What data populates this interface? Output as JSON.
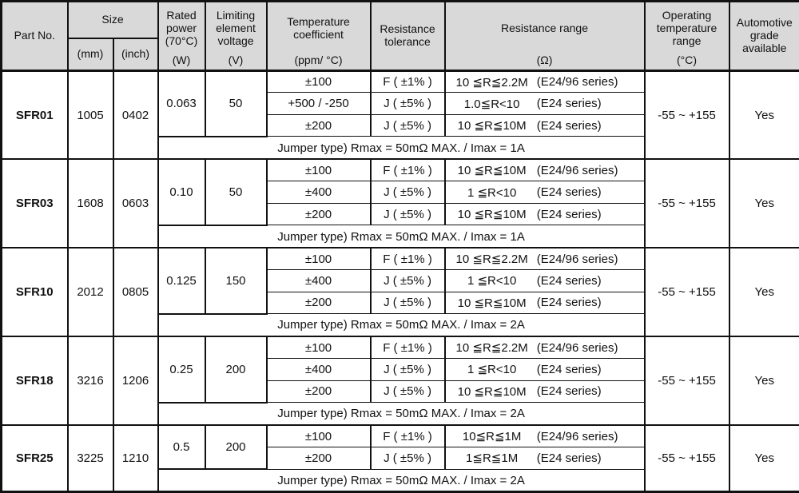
{
  "header": {
    "part_no": "Part No.",
    "size": "Size",
    "mm": "(mm)",
    "inch": "(inch)",
    "rated_power": "Rated power (70°C)",
    "rated_power_unit": "(W)",
    "limiting_voltage": "Limiting element voltage",
    "limiting_voltage_unit": "(V)",
    "temp_coeff": "Temperature coefficient",
    "temp_coeff_unit": "(ppm/ °C)",
    "tolerance": "Resistance tolerance",
    "resistance_range": "Resistance range",
    "resistance_range_unit": "(Ω)",
    "op_temp": "Operating temperature range",
    "op_temp_unit": "(°C)",
    "automotive": "Automotive grade available"
  },
  "groups": [
    {
      "part": "SFR01",
      "mm": "1005",
      "inch": "0402",
      "power": "0.063",
      "voltage": "50",
      "rows": [
        {
          "tc": "±100",
          "tol": "F ( ±1% )",
          "range": "10 ≦R≦2.2M",
          "series": "(E24/96 series)"
        },
        {
          "tc": "+500 / -250",
          "tol": "J ( ±5% )",
          "range": "1.0≦R<10",
          "series": "(E24 series)"
        },
        {
          "tc": "±200",
          "tol": "J ( ±5% )",
          "range": "10 ≦R≦10M",
          "series": "(E24 series)"
        }
      ],
      "jumper": "Jumper type) Rmax = 50mΩ MAX. / Imax = 1A",
      "op_temp": "-55 ~ +155",
      "automotive": "Yes"
    },
    {
      "part": "SFR03",
      "mm": "1608",
      "inch": "0603",
      "power": "0.10",
      "voltage": "50",
      "rows": [
        {
          "tc": "±100",
          "tol": "F ( ±1% )",
          "range": "10 ≦R≦10M",
          "series": "(E24/96 series)"
        },
        {
          "tc": "±400",
          "tol": "J ( ±5% )",
          "range": "1 ≦R<10",
          "series": "(E24 series)"
        },
        {
          "tc": "±200",
          "tol": "J ( ±5% )",
          "range": "10 ≦R≦10M",
          "series": "(E24 series)"
        }
      ],
      "jumper": "Jumper type) Rmax = 50mΩ MAX. / Imax = 1A",
      "op_temp": "-55 ~ +155",
      "automotive": "Yes"
    },
    {
      "part": "SFR10",
      "mm": "2012",
      "inch": "0805",
      "power": "0.125",
      "voltage": "150",
      "rows": [
        {
          "tc": "±100",
          "tol": "F ( ±1% )",
          "range": "10 ≦R≦2.2M",
          "series": "(E24/96 series)"
        },
        {
          "tc": "±400",
          "tol": "J ( ±5% )",
          "range": "1 ≦R<10",
          "series": "(E24 series)"
        },
        {
          "tc": "±200",
          "tol": "J ( ±5% )",
          "range": "10 ≦R≦10M",
          "series": "(E24 series)"
        }
      ],
      "jumper": "Jumper type) Rmax = 50mΩ MAX. / Imax = 2A",
      "op_temp": "-55 ~ +155",
      "automotive": "Yes"
    },
    {
      "part": "SFR18",
      "mm": "3216",
      "inch": "1206",
      "power": "0.25",
      "voltage": "200",
      "rows": [
        {
          "tc": "±100",
          "tol": "F ( ±1% )",
          "range": "10 ≦R≦2.2M",
          "series": "(E24/96 series)"
        },
        {
          "tc": "±400",
          "tol": "J ( ±5% )",
          "range": "1 ≦R<10",
          "series": "(E24 series)"
        },
        {
          "tc": "±200",
          "tol": "J ( ±5% )",
          "range": "10 ≦R≦10M",
          "series": "(E24 series)"
        }
      ],
      "jumper": "Jumper type) Rmax = 50mΩ MAX. / Imax = 2A",
      "op_temp": "-55 ~ +155",
      "automotive": "Yes"
    },
    {
      "part": "SFR25",
      "mm": "3225",
      "inch": "1210",
      "power": "0.5",
      "voltage": "200",
      "rows": [
        {
          "tc": "±100",
          "tol": "F ( ±1% )",
          "range": "10≦R≦1M",
          "series": "(E24/96 series)"
        },
        {
          "tc": "±200",
          "tol": "J ( ±5% )",
          "range": "1≦R≦1M",
          "series": "(E24 series)"
        }
      ],
      "jumper": "Jumper type) Rmax = 50mΩ MAX. / Imax = 2A",
      "op_temp": "-55 ~ +155",
      "automotive": "Yes"
    }
  ]
}
